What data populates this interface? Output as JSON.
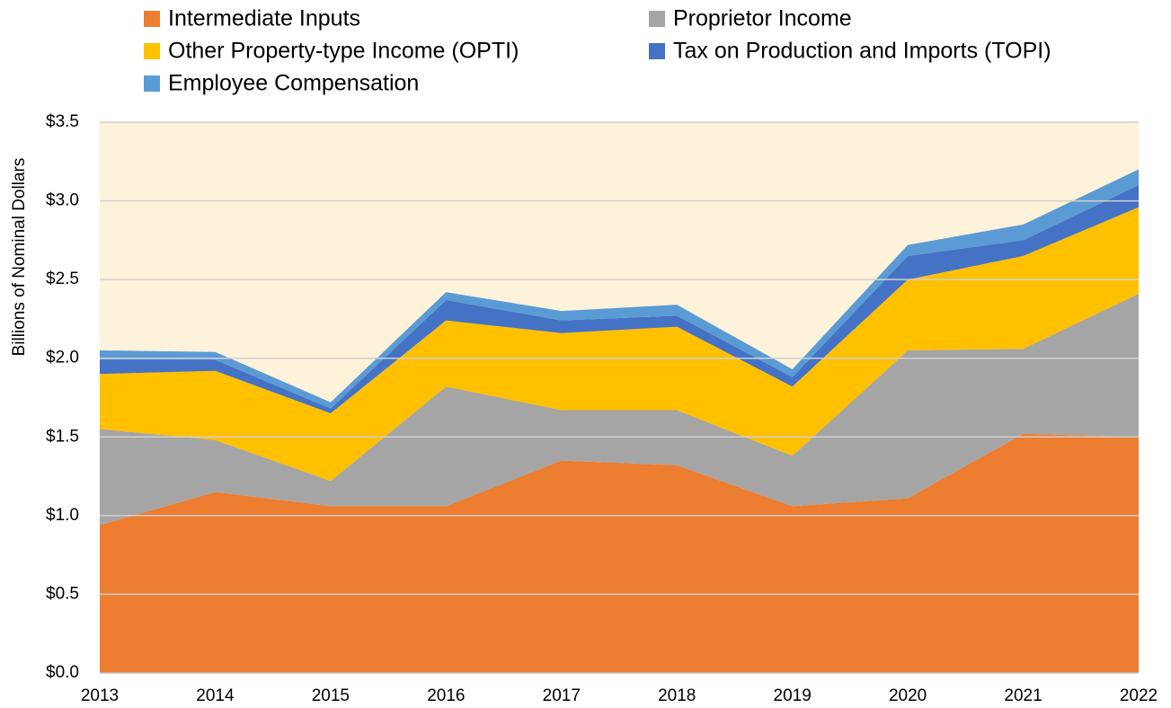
{
  "chart_data": {
    "type": "stacked_area",
    "y_label": "Billions of Nominal Dollars",
    "categories": [
      "2013",
      "2014",
      "2015",
      "2016",
      "2017",
      "2018",
      "2019",
      "2020",
      "2021",
      "2022"
    ],
    "series": [
      {
        "name": "Intermediate Inputs",
        "color": "#ed7d31",
        "values": [
          0.94,
          1.15,
          1.06,
          1.06,
          1.35,
          1.32,
          1.06,
          1.11,
          1.52,
          1.5
        ]
      },
      {
        "name": "Proprietor Income",
        "color": "#a5a5a5",
        "values": [
          0.61,
          0.33,
          0.16,
          0.76,
          0.32,
          0.35,
          0.32,
          0.94,
          0.54,
          0.91
        ]
      },
      {
        "name": "Other Property-type Income (OPTI)",
        "color": "#ffc000",
        "values": [
          0.35,
          0.44,
          0.43,
          0.42,
          0.49,
          0.53,
          0.44,
          0.45,
          0.59,
          0.55
        ]
      },
      {
        "name": "Tax on Production and Imports (TOPI)",
        "color": "#4472c4",
        "values": [
          0.09,
          0.07,
          0.03,
          0.13,
          0.08,
          0.07,
          0.06,
          0.15,
          0.1,
          0.14
        ]
      },
      {
        "name": "Employee Compensation",
        "color": "#5b9bd5",
        "values": [
          0.06,
          0.05,
          0.04,
          0.05,
          0.06,
          0.07,
          0.05,
          0.07,
          0.1,
          0.1
        ]
      }
    ],
    "ylim": [
      0,
      3.5
    ],
    "yticks": [
      {
        "value": 0,
        "label": "$0.0"
      },
      {
        "value": 0.5,
        "label": "$0.5"
      },
      {
        "value": 1,
        "label": "$1.0"
      },
      {
        "value": 1.5,
        "label": "$1.5"
      },
      {
        "value": 2,
        "label": "$2.0"
      },
      {
        "value": 2.5,
        "label": "$2.5"
      },
      {
        "value": 3,
        "label": "$3.0"
      },
      {
        "value": 3.5,
        "label": "$3.5"
      }
    ],
    "grid": true,
    "legend": "top"
  }
}
